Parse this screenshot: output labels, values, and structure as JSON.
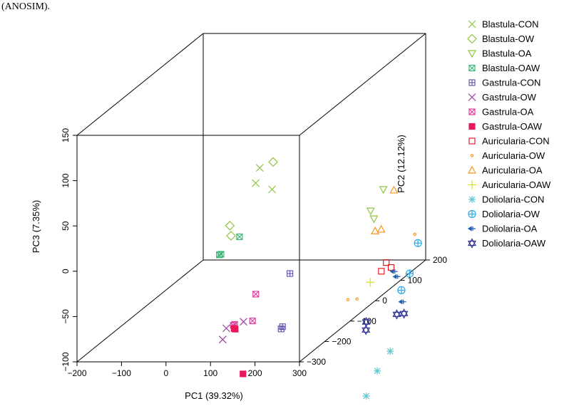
{
  "caption": "(ANOSIM).",
  "chart_data": {
    "type": "scatter",
    "projection": "3d",
    "title": "",
    "xlabel": "PC1 (39.32%)",
    "ylabel": "PC2 (12.12%)",
    "zlabel": "PC3 (7.35%)",
    "xlim": [
      -200,
      300
    ],
    "ylim": [
      -300,
      200
    ],
    "zlim": [
      -100,
      150
    ],
    "x_ticks": [
      "−200",
      "−100",
      "0",
      "100",
      "200",
      "300"
    ],
    "y_ticks": [
      "−300",
      "−200",
      "−100",
      "0",
      "100",
      "200"
    ],
    "z_ticks": [
      "−100",
      "−50",
      "0",
      "50",
      "100",
      "150"
    ],
    "legend_position": "right",
    "grid": false,
    "series": [
      {
        "name": "Blastula-CON",
        "marker": "x",
        "color": "#8dc63f",
        "points": [
          [
            -69,
            177,
            -10
          ],
          [
            -35,
            182,
            -18
          ],
          [
            -52,
            163,
            10
          ]
        ]
      },
      {
        "name": "Blastula-OW",
        "marker": "diamond",
        "color": "#8dc63f",
        "points": [
          [
            -104,
            141,
            -60
          ],
          [
            -97,
            124,
            -45
          ],
          [
            -23,
            165,
            16
          ]
        ]
      },
      {
        "name": "Blastula-OA",
        "marker": "tri-down",
        "color": "#8dc63f",
        "points": [
          [
            191,
            174,
            -40
          ],
          [
            195,
            180,
            -50
          ],
          [
            223,
            168,
            -15
          ]
        ]
      },
      {
        "name": "Blastula-OAW",
        "marker": "box-x",
        "color": "#3cb878",
        "points": [
          [
            -115,
            114,
            -75
          ],
          [
            -113,
            117,
            -75
          ],
          [
            -77,
            127,
            -58
          ]
        ]
      },
      {
        "name": "Gastrula-CON",
        "marker": "box-plus",
        "color": "#6a5aa8",
        "points": [
          [
            41,
            84,
            -150
          ],
          [
            43,
            86,
            -148
          ],
          [
            63,
            80,
            -88
          ]
        ]
      },
      {
        "name": "Gastrula-OW",
        "marker": "x",
        "color": "#9b3fa0",
        "points": [
          [
            -28,
            -26,
            -137
          ],
          [
            -21,
            -24,
            -125
          ],
          [
            12,
            -14,
            -120
          ]
        ]
      },
      {
        "name": "Gastrula-OA",
        "marker": "box-x",
        "color": "#e040a0",
        "points": [
          [
            -16,
            -5,
            -126
          ],
          [
            -13,
            -5,
            -125
          ],
          [
            30,
            -10,
            -120
          ],
          [
            26,
            10,
            -95
          ]
        ]
      },
      {
        "name": "Gastrula-OAW",
        "marker": "filled-square",
        "color": "#e8185a",
        "points": [
          [
            -3,
            -25,
            -125
          ],
          [
            -1,
            -24,
            -126
          ],
          [
            25,
            -39,
            -172
          ]
        ]
      },
      {
        "name": "Auricularia-CON",
        "marker": "square",
        "color": "#ed1c24",
        "points": [
          [
            214,
            176,
            -107
          ],
          [
            228,
            190,
            -106
          ],
          [
            221,
            183,
            -99
          ]
        ]
      },
      {
        "name": "Auricularia-OW",
        "marker": "small-circle",
        "color": "#f7941d",
        "points": [
          [
            178,
            107,
            -123
          ],
          [
            191,
            120,
            -125
          ],
          [
            267,
            215,
            -75
          ]
        ]
      },
      {
        "name": "Auricularia-OA",
        "marker": "tri-up",
        "color": "#f7941d",
        "points": [
          [
            199,
            178,
            -63
          ],
          [
            208,
            186,
            -63
          ],
          [
            236,
            187,
            -20
          ]
        ]
      },
      {
        "name": "Auricularia-OAW",
        "marker": "plus",
        "color": "#d7df23",
        "points": [
          [
            207,
            144,
            -112
          ]
        ]
      },
      {
        "name": "Doliolaria-CON",
        "marker": "asterisk",
        "color": "#5bc8d0",
        "points": [
          [
            230,
            88,
            -225
          ],
          [
            248,
            100,
            -200
          ],
          [
            260,
            130,
            -185
          ]
        ]
      },
      {
        "name": "Doliolaria-OW",
        "marker": "circle-plus",
        "color": "#29a9e1",
        "points": [
          [
            254,
            185,
            -130
          ],
          [
            264,
            200,
            -115
          ],
          [
            286,
            194,
            -80
          ]
        ]
      },
      {
        "name": "Doliolaria-OA",
        "marker": "arrow-left",
        "color": "#1c5eb8",
        "points": [
          [
            241,
            179,
            -108
          ],
          [
            244,
            185,
            -115
          ],
          [
            284,
            137,
            -132
          ]
        ]
      },
      {
        "name": "Doliolaria-OAW",
        "marker": "star6",
        "color": "#2e3192",
        "points": [
          [
            223,
            100,
            -146
          ],
          [
            227,
            92,
            -153
          ],
          [
            273,
            133,
            -145
          ],
          [
            287,
            137,
            -145
          ]
        ]
      }
    ]
  }
}
